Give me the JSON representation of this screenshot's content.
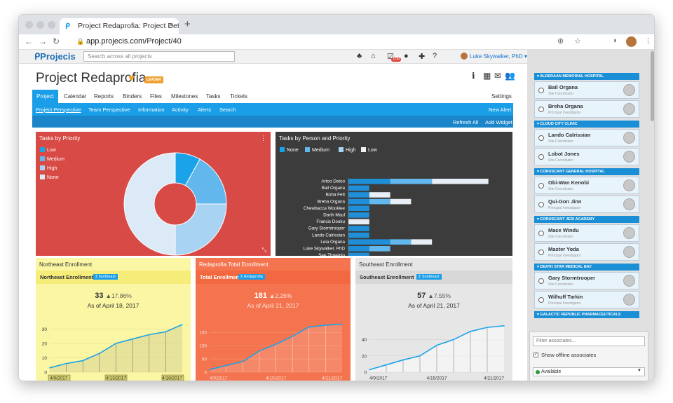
{
  "browser": {
    "tab_title": "Project Redaprofia: Project Det",
    "tab_close": "×",
    "new_tab": "+",
    "url": "app.projecis.com/Project/40"
  },
  "app": {
    "logo": "Projecis",
    "search_placeholder": "Search across all projects",
    "badge_count": "109",
    "user_name": "Luke Skywalker, PhD",
    "user_caret": "▾"
  },
  "project": {
    "title": "Project Redaprofia",
    "label": "LEADER",
    "tabs": [
      "Project",
      "Calendar",
      "Reports",
      "Binders",
      "Files",
      "Milestones",
      "Tasks",
      "Tickets"
    ],
    "settings": "Settings",
    "subnav": [
      "Project Perspective",
      "Team Perspective",
      "Information",
      "Activity",
      "Alerts",
      "Search"
    ],
    "new_alert": "New Alert",
    "refresh_all": "Refresh All",
    "add_widget": "Add Widget"
  },
  "widgets": {
    "priority_title": "Tasks by Priority",
    "priority_menu": "⋮",
    "person_title": "Tasks by Person and Priority",
    "northeast": {
      "title": "Northeast Enrollment",
      "label": "Northeast Enrollment",
      "filter": "Σ Northeast",
      "number": "33",
      "pct": "17.86%",
      "asof": "As of April 18, 2017"
    },
    "total": {
      "title": "Redaprofia Total Enrollment",
      "label": "Total Enrollment",
      "filter": "Σ Redaprofia",
      "number": "181",
      "pct": "2.26%",
      "asof": "As of April 21, 2017"
    },
    "southeast": {
      "title": "Southeast Enrollment",
      "label": "Southeast Enrollment",
      "filter": "Σ Southeast",
      "number": "57",
      "pct": "7.55%",
      "asof": "As of April 21, 2017"
    }
  },
  "chart_data": [
    {
      "type": "pie",
      "title": "Tasks by Priority",
      "categories": [
        "Low",
        "Medium",
        "High",
        "None"
      ],
      "values": [
        8,
        17,
        25,
        50
      ],
      "colors": [
        "#1aa3e8",
        "#62b7ec",
        "#a9d3f2",
        "#dce9f6"
      ],
      "legend": "top-left"
    },
    {
      "type": "bar",
      "title": "Tasks by Person and Priority",
      "categories": [
        "Artoo Detoo",
        "Bail Organa",
        "Boba Fett",
        "Breha Organa",
        "Chewbacca Wookiee",
        "Darth Maul",
        "Francis Dooku",
        "Gary Stormtrooper",
        "Lando Calrissian",
        "Leia Organa",
        "Luke Skywalker, PhD",
        "See Threepio"
      ],
      "series": [
        {
          "name": "None",
          "values": [
            0,
            0,
            0,
            0,
            0,
            0,
            0,
            0,
            0,
            0,
            0,
            0
          ]
        },
        {
          "name": "Medium",
          "values": [
            2,
            1,
            1,
            1,
            1,
            1,
            0,
            1,
            1,
            2,
            1,
            1
          ]
        },
        {
          "name": "High",
          "values": [
            2,
            0,
            0,
            1,
            0,
            0,
            0,
            0,
            0,
            1,
            1,
            0
          ]
        },
        {
          "name": "Low",
          "values": [
            2.7,
            0,
            1,
            1,
            0,
            0,
            1,
            0,
            0,
            1,
            0,
            0
          ]
        }
      ],
      "xticks": [
        "0",
        "1",
        "2",
        "3",
        "4",
        "5",
        "6",
        "7"
      ],
      "xlim": [
        0,
        7
      ],
      "legend": "top-left"
    },
    {
      "type": "line",
      "title": "Northeast Enrollment",
      "x": [
        "4/9/2017",
        "4/10/2017",
        "4/11/2017",
        "4/12/2017",
        "4/13/2017",
        "4/14/2017",
        "4/16/2017",
        "4/18/2017",
        "4/19/2017"
      ],
      "y": [
        3,
        6,
        8,
        13,
        20,
        23,
        26,
        28,
        33
      ],
      "xticks": [
        "4/9/2017",
        "4/13/2017",
        "4/18/2017"
      ],
      "yticks": [
        "0",
        "10",
        "20",
        "30"
      ],
      "ylim": [
        0,
        35
      ]
    },
    {
      "type": "line",
      "title": "Redaprofia Total Enrollment",
      "x": [
        "4/9/2017",
        "4/10/2017",
        "4/11/2017",
        "4/12/2017",
        "4/13/2017",
        "4/15/2017",
        "4/17/2017",
        "4/19/2017",
        "4/21/2017"
      ],
      "y": [
        10,
        25,
        40,
        80,
        105,
        135,
        170,
        177,
        181
      ],
      "xticks": [
        "4/9/2017",
        "4/15/2017",
        "4/21/2017"
      ],
      "yticks": [
        "0",
        "50",
        "100",
        "150"
      ],
      "ylim": [
        0,
        190
      ]
    },
    {
      "type": "line",
      "title": "Southeast Enrollment",
      "x": [
        "4/9/2017",
        "4/10/2017",
        "4/11/2017",
        "4/12/2017",
        "4/13/2017",
        "4/15/2017",
        "4/17/2017",
        "4/19/2017",
        "4/21/2017"
      ],
      "y": [
        3,
        9,
        15,
        20,
        33,
        40,
        50,
        55,
        57
      ],
      "xticks": [
        "4/9/2017",
        "4/15/2017",
        "4/21/2017"
      ],
      "yticks": [
        "0",
        "20",
        "40"
      ],
      "ylim": [
        0,
        62
      ]
    }
  ],
  "sidebar": {
    "groups": [
      {
        "name": "ALDERAAN MEMORIAL HOSPITAL",
        "people": [
          {
            "name": "Bail Organa",
            "role": "Site Coordinator"
          },
          {
            "name": "Breha Organa",
            "role": "Principal Investigator"
          }
        ]
      },
      {
        "name": "CLOUD CITY CLINIC",
        "people": [
          {
            "name": "Lando Calrissian",
            "role": "Site Coordinator"
          },
          {
            "name": "Lobot Jones",
            "role": "Site Coordinator"
          }
        ]
      },
      {
        "name": "CORUSCANT GENERAL HOSPITAL",
        "people": [
          {
            "name": "Obi-Wan Kenobi",
            "role": "Site Coordinator"
          },
          {
            "name": "Qui-Gon Jinn",
            "role": "Principal Investigator"
          }
        ]
      },
      {
        "name": "CORUSCANT JEDI ACADEMY",
        "people": [
          {
            "name": "Mace Windu",
            "role": "Site Coordinator"
          },
          {
            "name": "Master Yoda",
            "role": "Principal Investigator"
          }
        ]
      },
      {
        "name": "DEATH STAR MEDICAL BAY",
        "people": [
          {
            "name": "Gary Stormtrooper",
            "role": "Site Coordinator"
          },
          {
            "name": "Wilhuff Tarkin",
            "role": "Principal Investigator"
          }
        ]
      },
      {
        "name": "GALACTIC REPUBLIC PHARMACEUTICALS",
        "people": []
      }
    ],
    "filter_placeholder": "Filter associates...",
    "show_offline": "Show offline associates",
    "status": "Available"
  }
}
